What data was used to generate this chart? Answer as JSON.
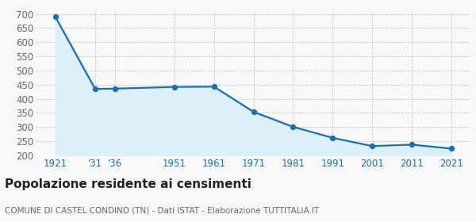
{
  "years": [
    1921,
    1931,
    1936,
    1951,
    1961,
    1971,
    1981,
    1991,
    2001,
    2011,
    2021
  ],
  "values": [
    689,
    435,
    436,
    442,
    443,
    354,
    301,
    262,
    233,
    238,
    224
  ],
  "x_labels": [
    "1921",
    "'31",
    "'36",
    "1951",
    "1961",
    "1971",
    "1981",
    "1991",
    "2001",
    "2011",
    "2021"
  ],
  "ylim": [
    200,
    710
  ],
  "yticks": [
    200,
    250,
    300,
    350,
    400,
    450,
    500,
    550,
    600,
    650,
    700
  ],
  "line_color": "#1b6eaf",
  "fill_color": "#dceef8",
  "marker_color": "#1b6eaf",
  "grid_color": "#c8c8c8",
  "bg_color": "#f8f8f8",
  "title": "Popolazione residente ai censimenti",
  "subtitle": "COMUNE DI CASTEL CONDINO (TN) - Dati ISTAT - Elaborazione TUTTITALIA.IT",
  "title_fontsize": 11,
  "subtitle_fontsize": 7.5,
  "tick_label_color": "#1b6eaf",
  "ytick_label_color": "#666666",
  "tick_fontsize": 8.5
}
